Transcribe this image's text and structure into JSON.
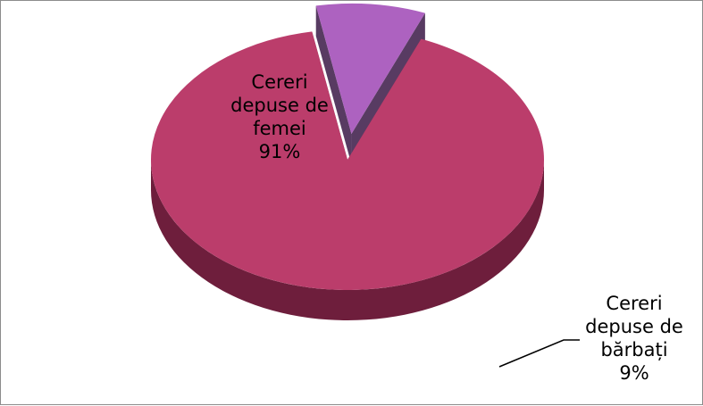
{
  "chart_data": {
    "type": "pie",
    "style": "3d-exploded",
    "slices": [
      {
        "label_lines": [
          "Cereri",
          "depuse de",
          "femei"
        ],
        "value": 91,
        "value_label": "91%",
        "color": "#bb3d6b",
        "dark_color": "#6e1e3c",
        "exploded": false
      },
      {
        "label_lines": [
          "Cereri",
          "depuse de",
          "bărbați"
        ],
        "value": 9,
        "value_label": "9%",
        "color": "#ad62c0",
        "dark_color": "#4a2a55",
        "exploded": true
      }
    ],
    "title": "",
    "legend": "none",
    "border_color": "#8c8c8c"
  }
}
